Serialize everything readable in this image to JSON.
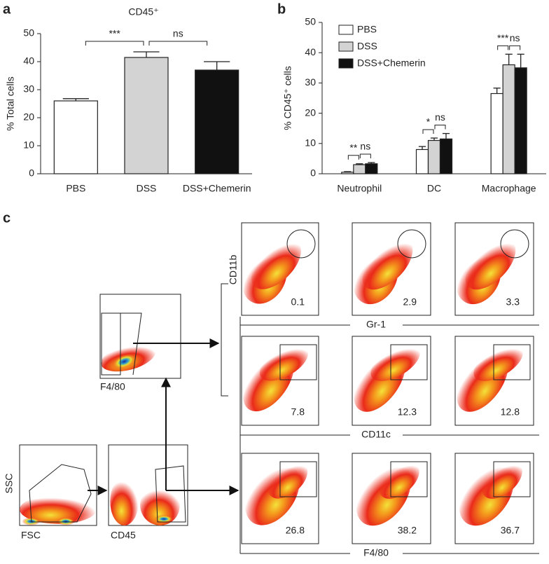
{
  "chart_data": [
    {
      "type": "bar",
      "panel": "a",
      "title": "CD45⁺",
      "ylabel": "% Total cells",
      "categories": [
        "PBS",
        "DSS",
        "DSS+Chemerin"
      ],
      "values": [
        26,
        41.5,
        37
      ],
      "errors": [
        0.8,
        2,
        3
      ],
      "colors": [
        "#ffffff",
        "#d3d3d3",
        "#111111"
      ],
      "ylim": [
        0,
        50
      ],
      "yticks": [
        0,
        10,
        20,
        30,
        40,
        50
      ],
      "annotations": [
        "***",
        "ns"
      ]
    },
    {
      "type": "grouped_bar",
      "panel": "b",
      "ylabel": "% CD45⁺ cells",
      "categories": [
        "Neutrophil",
        "DC",
        "Macrophage"
      ],
      "series": [
        {
          "name": "PBS",
          "color": "#ffffff",
          "values": [
            0.5,
            8,
            26.5
          ],
          "errors": [
            0.2,
            1,
            1.8
          ]
        },
        {
          "name": "DSS",
          "color": "#d3d3d3",
          "values": [
            3,
            11,
            36
          ],
          "errors": [
            0.3,
            0.8,
            3.5
          ]
        },
        {
          "name": "DSS+Chemerin",
          "color": "#111111",
          "values": [
            3.3,
            11.5,
            35
          ],
          "errors": [
            0.4,
            1.8,
            4.5
          ]
        }
      ],
      "ylim": [
        0,
        50
      ],
      "yticks": [
        0,
        10,
        20,
        30,
        40,
        50
      ],
      "legend": "top-left",
      "annotations": [
        "**",
        "ns",
        "*",
        "ns",
        "***",
        "ns"
      ]
    }
  ],
  "panel_c": {
    "label": "c",
    "ssc_label": "SSC",
    "fsc_label": "FSC",
    "cd45_label": "CD45",
    "f4_80_label": "F4/80",
    "rows": [
      {
        "y_label": "CD11b",
        "x_label": "Gr-1",
        "values": [
          0.1,
          2.9,
          3.3
        ]
      },
      {
        "x_label": "CD11c",
        "values": [
          7.8,
          12.3,
          12.8
        ]
      },
      {
        "x_label": "F4/80",
        "values": [
          26.8,
          38.2,
          36.7
        ]
      }
    ]
  }
}
